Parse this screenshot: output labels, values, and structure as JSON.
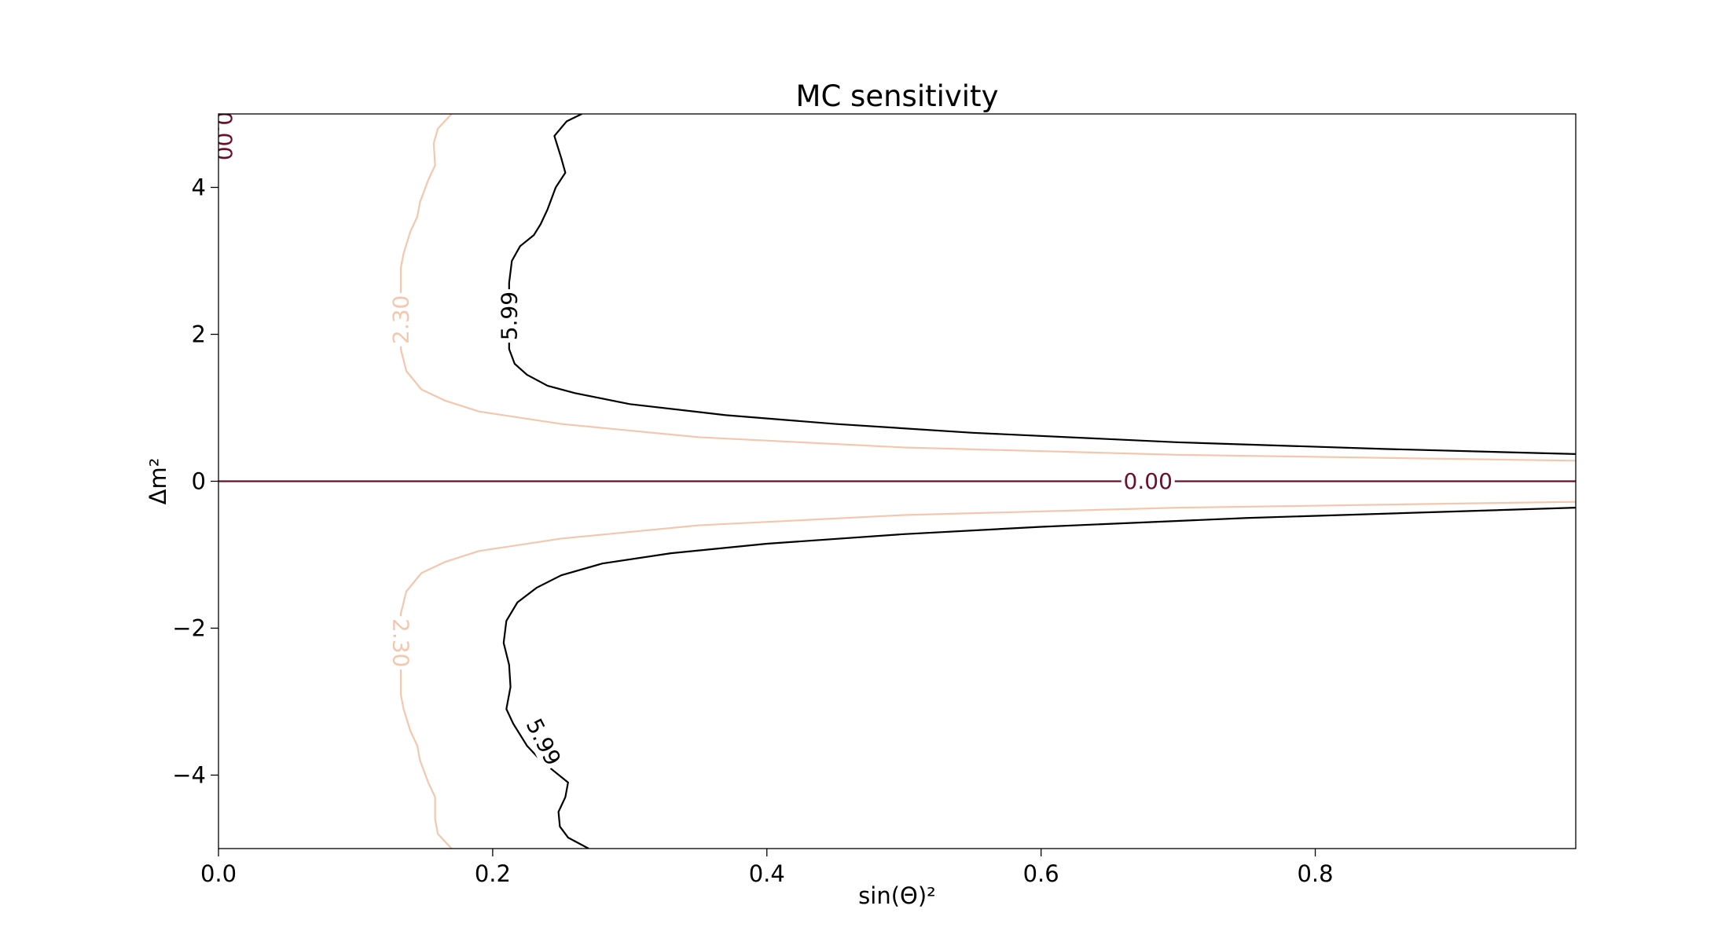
{
  "chart_data": {
    "type": "contour",
    "title": "MC sensitivity",
    "xlabel": "sin(Θ)²",
    "ylabel": "Δm²",
    "xlim": [
      0.0,
      0.99
    ],
    "ylim": [
      -5,
      5
    ],
    "x_ticks": [
      0.0,
      0.2,
      0.4,
      0.6,
      0.8
    ],
    "x_tick_labels": [
      "0.0",
      "0.2",
      "0.4",
      "0.6",
      "0.8"
    ],
    "y_ticks": [
      -4,
      -2,
      0,
      2,
      4
    ],
    "y_tick_labels": [
      "−4",
      "−2",
      "0",
      "2",
      "4"
    ],
    "grid": false,
    "colors": {
      "level_0": "#6b0f2a",
      "level_230": "#f3c7ad",
      "level_599": "#000000",
      "axes": "#000000"
    },
    "contours": [
      {
        "level": 0.0,
        "label": "0.00",
        "color": "#6b0f2a",
        "segments": [
          {
            "points": [
              [
                0.0,
                0.0
              ],
              [
                0.99,
                0.0
              ]
            ],
            "label_at": [
              0.678,
              0.0
            ],
            "label_rotation": 0
          },
          {
            "points": [
              [
                0.003,
                5.0
              ],
              [
                0.003,
                4.4
              ]
            ],
            "label_at": [
              0.004,
              4.7
            ],
            "label_rotation": 90
          }
        ]
      },
      {
        "level": 2.3,
        "label": "2.30",
        "color": "#f3c7ad",
        "segments": [
          {
            "points": [
              [
                0.17,
                5.0
              ],
              [
                0.16,
                4.8
              ],
              [
                0.157,
                4.6
              ],
              [
                0.158,
                4.3
              ],
              [
                0.153,
                4.1
              ],
              [
                0.147,
                3.8
              ],
              [
                0.145,
                3.6
              ],
              [
                0.14,
                3.4
              ],
              [
                0.135,
                3.1
              ],
              [
                0.133,
                2.9
              ],
              [
                0.133,
                2.5
              ],
              [
                0.133,
                1.8
              ],
              [
                0.137,
                1.5
              ],
              [
                0.148,
                1.25
              ],
              [
                0.165,
                1.1
              ],
              [
                0.19,
                0.95
              ],
              [
                0.25,
                0.78
              ],
              [
                0.35,
                0.6
              ],
              [
                0.5,
                0.46
              ],
              [
                0.7,
                0.36
              ],
              [
                0.99,
                0.28
              ]
            ],
            "label_at": [
              0.133,
              2.2
            ],
            "label_rotation": -90
          },
          {
            "points": [
              [
                0.17,
                -5.0
              ],
              [
                0.16,
                -4.8
              ],
              [
                0.158,
                -4.6
              ],
              [
                0.158,
                -4.3
              ],
              [
                0.153,
                -4.1
              ],
              [
                0.147,
                -3.8
              ],
              [
                0.145,
                -3.6
              ],
              [
                0.14,
                -3.4
              ],
              [
                0.135,
                -3.1
              ],
              [
                0.133,
                -2.9
              ],
              [
                0.133,
                -2.5
              ],
              [
                0.133,
                -1.8
              ],
              [
                0.137,
                -1.5
              ],
              [
                0.148,
                -1.25
              ],
              [
                0.165,
                -1.1
              ],
              [
                0.19,
                -0.95
              ],
              [
                0.25,
                -0.78
              ],
              [
                0.35,
                -0.6
              ],
              [
                0.5,
                -0.46
              ],
              [
                0.7,
                -0.36
              ],
              [
                0.99,
                -0.28
              ]
            ],
            "label_at": [
              0.133,
              -2.2
            ],
            "label_rotation": 90
          }
        ]
      },
      {
        "level": 5.99,
        "label": "5.99",
        "color": "#000000",
        "segments": [
          {
            "points": [
              [
                0.265,
                5.0
              ],
              [
                0.254,
                4.9
              ],
              [
                0.245,
                4.7
              ],
              [
                0.25,
                4.4
              ],
              [
                0.253,
                4.2
              ],
              [
                0.246,
                4.0
              ],
              [
                0.24,
                3.7
              ],
              [
                0.235,
                3.5
              ],
              [
                0.23,
                3.35
              ],
              [
                0.22,
                3.2
              ],
              [
                0.214,
                3.0
              ],
              [
                0.212,
                2.7
              ],
              [
                0.212,
                1.8
              ],
              [
                0.216,
                1.6
              ],
              [
                0.225,
                1.45
              ],
              [
                0.24,
                1.3
              ],
              [
                0.26,
                1.2
              ],
              [
                0.3,
                1.05
              ],
              [
                0.37,
                0.9
              ],
              [
                0.45,
                0.78
              ],
              [
                0.55,
                0.66
              ],
              [
                0.7,
                0.53
              ],
              [
                0.85,
                0.44
              ],
              [
                0.99,
                0.37
              ]
            ],
            "label_at": [
              0.212,
              2.25
            ],
            "label_rotation": -90
          },
          {
            "points": [
              [
                0.27,
                -5.0
              ],
              [
                0.255,
                -4.85
              ],
              [
                0.249,
                -4.7
              ],
              [
                0.248,
                -4.5
              ],
              [
                0.253,
                -4.3
              ],
              [
                0.255,
                -4.1
              ],
              [
                0.245,
                -3.95
              ],
              [
                0.235,
                -3.8
              ],
              [
                0.225,
                -3.6
              ],
              [
                0.215,
                -3.3
              ],
              [
                0.21,
                -3.1
              ],
              [
                0.213,
                -2.8
              ],
              [
                0.212,
                -2.5
              ],
              [
                0.208,
                -2.2
              ],
              [
                0.21,
                -1.9
              ],
              [
                0.218,
                -1.65
              ],
              [
                0.232,
                -1.45
              ],
              [
                0.25,
                -1.28
              ],
              [
                0.28,
                -1.12
              ],
              [
                0.33,
                -0.98
              ],
              [
                0.4,
                -0.85
              ],
              [
                0.5,
                -0.72
              ],
              [
                0.6,
                -0.62
              ],
              [
                0.75,
                -0.5
              ],
              [
                0.99,
                -0.36
              ]
            ],
            "label_at": [
              0.237,
              -3.55
            ],
            "label_rotation": 63
          }
        ]
      }
    ]
  }
}
